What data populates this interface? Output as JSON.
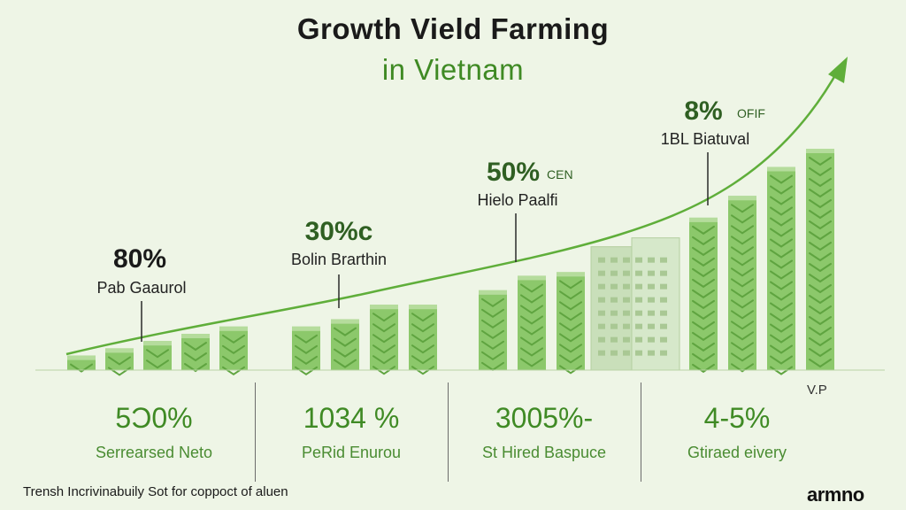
{
  "header": {
    "title_line1": "Growth Vield Farming",
    "title_line2": "in Vietnam"
  },
  "chart_data": {
    "type": "bar",
    "title": "Growth Vield Farming in Vietnam",
    "note": "bar heights estimated from relative visual height; no y-axis printed",
    "groups": [
      {
        "values": [
          4,
          6,
          8,
          10,
          12
        ]
      },
      {
        "values": [
          12,
          14,
          18,
          18
        ]
      },
      {
        "values": [
          22,
          26,
          27
        ]
      },
      {
        "values": [
          34
        ]
      },
      {
        "values": [
          42,
          48,
          56,
          61
        ]
      }
    ],
    "trend": "rising curve with arrow",
    "annotations": [
      {
        "value": "80%",
        "label": "Pab Gaaurol"
      },
      {
        "value": "30%c",
        "label": "Bolin Brarthin"
      },
      {
        "value": "50%",
        "value_suffix": "CEN",
        "label": "Hielo Paalfi"
      },
      {
        "value": "8%",
        "value_suffix": "OFIF",
        "label": "1BL Biatuval"
      }
    ],
    "colors": {
      "bar": "#8cc86b",
      "bar_dark": "#5fa440",
      "building": "#c9dfba",
      "trend": "#5fae3a",
      "accent": "#3f8a24"
    }
  },
  "stats": [
    {
      "value": "5Ɔ0%",
      "label": "Serrearsed Neto"
    },
    {
      "value": "1034 %",
      "label": "PeRid Enurou"
    },
    {
      "value": "3005%-",
      "label": "St Hired Baspuce"
    },
    {
      "value": "4-5%",
      "label": "Gtiraed eivery"
    }
  ],
  "footer": {
    "note": "Trensh Incrivinabuily Sot for coppoct of aluen",
    "corner_tag": "V.P",
    "brand": "armno"
  }
}
